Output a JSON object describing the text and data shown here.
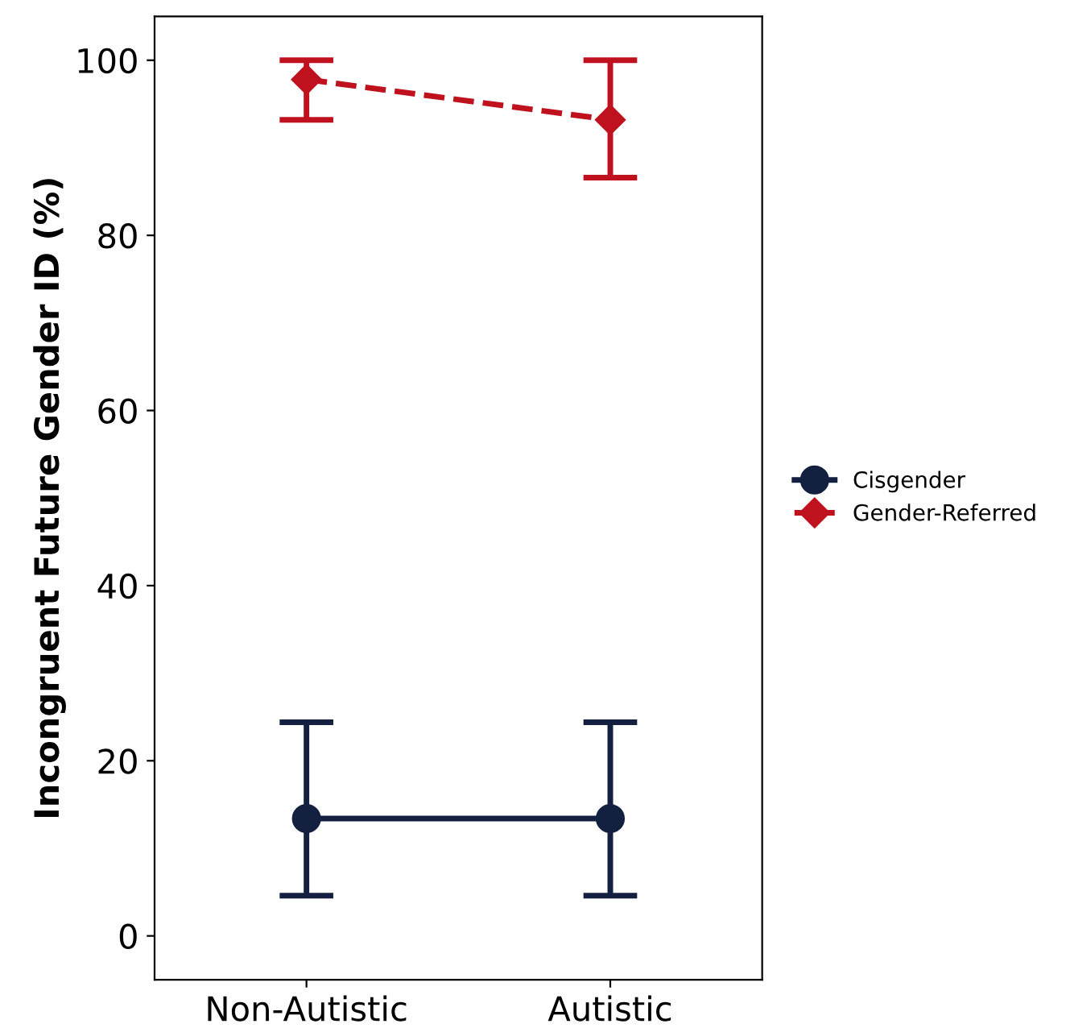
{
  "chart_data": {
    "type": "line",
    "ylabel": "Incongruent Future Gender ID (%)",
    "categories": [
      "Non-Autistic",
      "Autistic"
    ],
    "series": [
      {
        "name": "Cisgender",
        "color": "#13203f",
        "values": [
          13.4,
          13.4
        ],
        "errors": [
          [
            4.6,
            24.4
          ],
          [
            4.6,
            24.4
          ]
        ],
        "marker": "circle",
        "line_style": "solid"
      },
      {
        "name": "Gender-Referred",
        "color": "#c0111f",
        "values": [
          97.8,
          93.2
        ],
        "errors": [
          [
            93.2,
            100
          ],
          [
            86.6,
            100
          ]
        ],
        "marker": "diamond",
        "line_style": "dashed"
      }
    ],
    "ylim": [
      -5,
      105
    ],
    "yticks": [
      0,
      20,
      40,
      60,
      80,
      100
    ],
    "grid": false,
    "legend": "right"
  }
}
